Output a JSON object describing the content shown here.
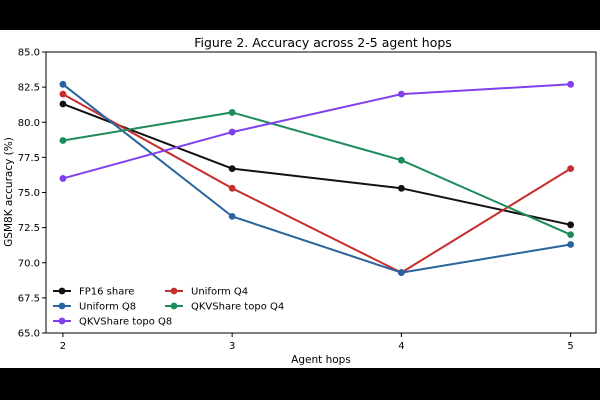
{
  "chart_data": {
    "type": "line",
    "title": "Figure 2. Accuracy across 2-5 agent hops",
    "xlabel": "Agent hops",
    "ylabel": "GSM8K accuracy (%)",
    "x": [
      2,
      3,
      4,
      5
    ],
    "x_tick_labels": [
      "2",
      "3",
      "4",
      "5"
    ],
    "ylim": [
      65.0,
      85.0
    ],
    "y_ticks": [
      65.0,
      67.5,
      70.0,
      72.5,
      75.0,
      77.5,
      80.0,
      82.5,
      85.0
    ],
    "y_tick_labels": [
      "65.0",
      "67.5",
      "70.0",
      "72.5",
      "75.0",
      "77.5",
      "80.0",
      "82.5",
      "85.0"
    ],
    "grid": false,
    "legend_position": "lower-left",
    "series": [
      {
        "name": "FP16 share",
        "color": "#111111",
        "values": [
          81.3,
          76.7,
          75.3,
          72.7
        ]
      },
      {
        "name": "Uniform Q4",
        "color": "#c62d2d",
        "values": [
          82.0,
          75.3,
          69.3,
          76.7
        ]
      },
      {
        "name": "Uniform Q8",
        "color": "#2a64a0",
        "values": [
          82.7,
          73.3,
          69.3,
          71.3
        ]
      },
      {
        "name": "QKVShare topo Q4",
        "color": "#1e8c5a",
        "values": [
          78.7,
          80.7,
          77.3,
          72.0
        ]
      },
      {
        "name": "QKVShare topo Q8",
        "color": "#8040ee",
        "values": [
          76.0,
          79.3,
          82.0,
          82.7
        ]
      }
    ]
  }
}
